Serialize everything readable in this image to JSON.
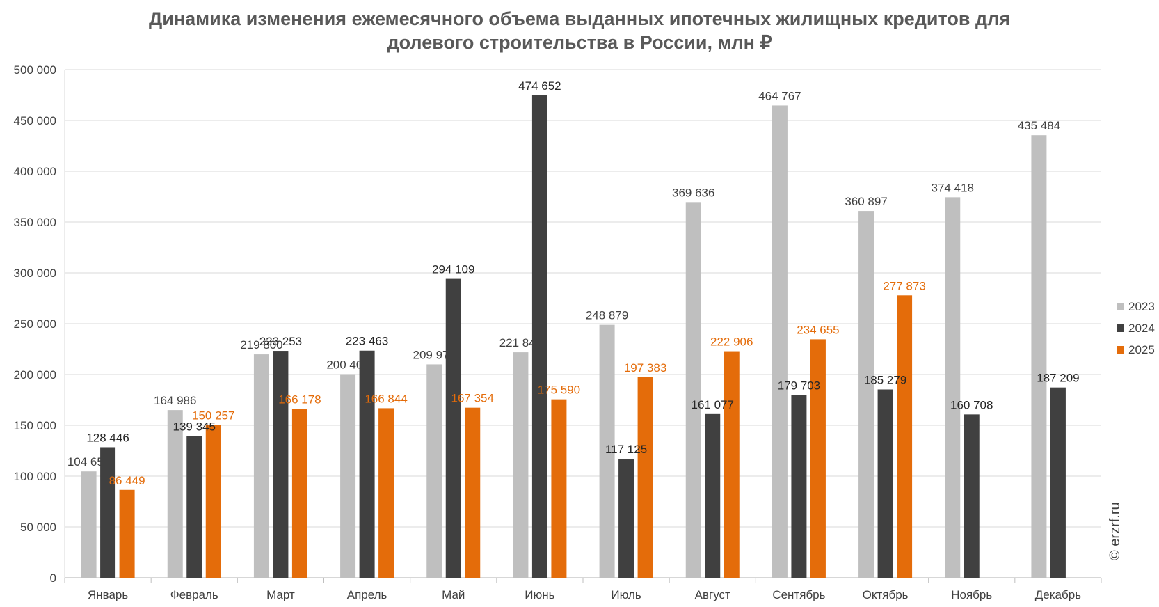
{
  "colors": {
    "series_2023": "#BFBFBF",
    "series_2024": "#404040",
    "series_2025": "#E46C0A",
    "label_2023": "#404040",
    "label_2024": "#262626",
    "label_2025": "#E46C0A",
    "grid": "#D9D9D9",
    "title": "#595959",
    "text": "#404040"
  },
  "source": "© erzrf.ru",
  "chart_data": {
    "type": "bar",
    "title": "Динамика изменения ежемесячного объема выданных ипотечных жилищных кредитов для долевого строительства в России, млн ₽",
    "title_lines": [
      "Динамика изменения ежемесячного объема выданных ипотечных жилищных кредитов для",
      "долевого строительства в России, млн ₽"
    ],
    "xlabel": "",
    "ylabel": "",
    "ylim": [
      0,
      500000
    ],
    "yticks": [
      0,
      50000,
      100000,
      150000,
      200000,
      250000,
      300000,
      350000,
      400000,
      450000,
      500000
    ],
    "ytick_labels": [
      "0",
      "50 000",
      "100 000",
      "150 000",
      "200 000",
      "250 000",
      "300 000",
      "350 000",
      "400 000",
      "450 000",
      "500 000"
    ],
    "grid": true,
    "legend_position": "right",
    "categories": [
      "Январь",
      "Февраль",
      "Март",
      "Апрель",
      "Май",
      "Июнь",
      "Июль",
      "Август",
      "Сентябрь",
      "Октябрь",
      "Ноябрь",
      "Декабрь"
    ],
    "series": [
      {
        "name": "2023",
        "values": [
          104650,
          164986,
          219800,
          200407,
          209975,
          221848,
          248879,
          369636,
          464767,
          360897,
          374418,
          435484
        ],
        "labels": [
          "104 650",
          "164 986",
          "219 800",
          "200 407",
          "209 975",
          "221 848",
          "248 879",
          "369 636",
          "464 767",
          "360 897",
          "374 418",
          "435 484"
        ]
      },
      {
        "name": "2024",
        "values": [
          128446,
          139345,
          223253,
          223463,
          294109,
          474652,
          117125,
          161077,
          179703,
          185279,
          160708,
          187209
        ],
        "labels": [
          "128 446",
          "139 345",
          "223 253",
          "223 463",
          "294 109",
          "474 652",
          "117 125",
          "161 077",
          "179 703",
          "185 279",
          "160 708",
          "187 209"
        ]
      },
      {
        "name": "2025",
        "values": [
          86449,
          150257,
          166178,
          166844,
          167354,
          175590,
          197383,
          222906,
          234655,
          277873,
          null,
          null
        ],
        "labels": [
          "86 449",
          "150 257",
          "166 178",
          "166 844",
          "167 354",
          "175 590",
          "197 383",
          "222 906",
          "234 655",
          "277 873",
          "",
          ""
        ]
      }
    ]
  }
}
